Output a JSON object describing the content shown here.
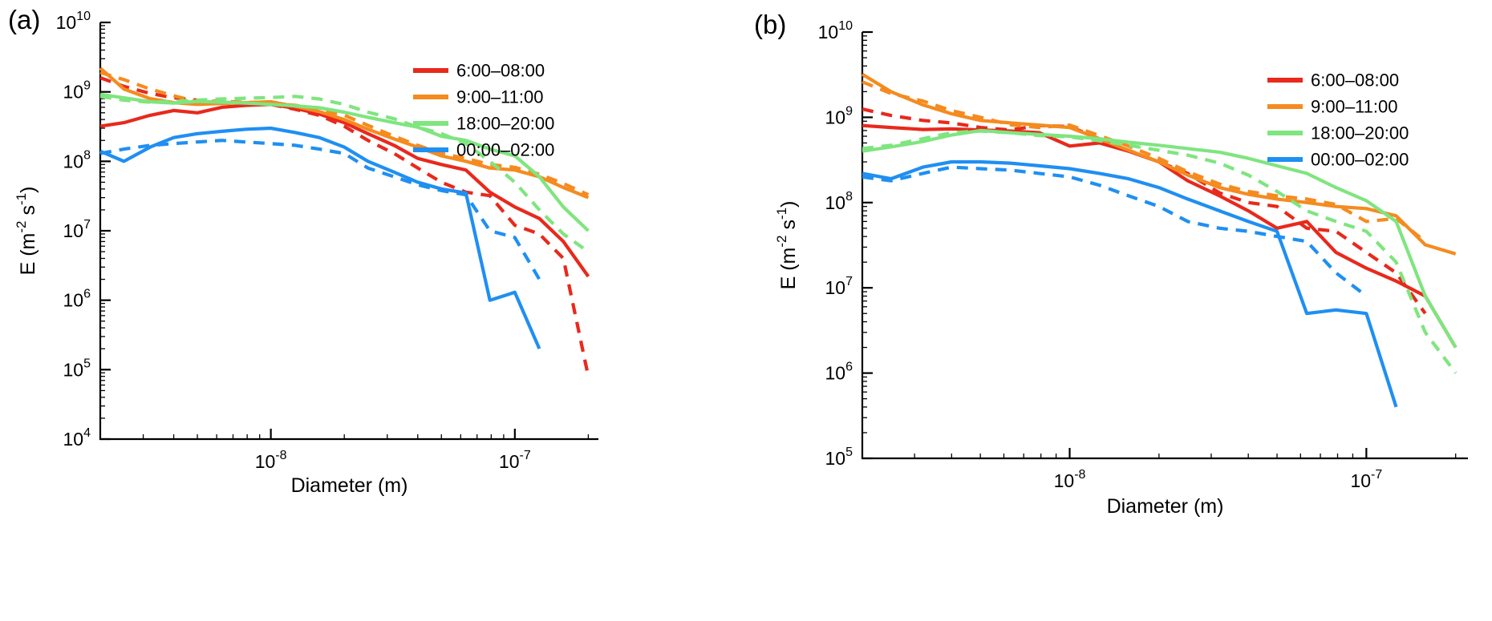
{
  "figure": {
    "background": "#ffffff",
    "palette": {
      "red": "#e8291c",
      "orange": "#f58b1f",
      "green": "#7fe57f",
      "blue": "#1f8ff2",
      "axis": "#000000"
    }
  },
  "chart_data": [
    {
      "panel_label": "(a)",
      "type": "line",
      "x_scale": "log",
      "y_scale": "log",
      "x_label": "Diameter (m)",
      "y_label": "E (m^-2 s^-1)",
      "y_label_parts": [
        {
          "t": "E (m"
        },
        {
          "t": "-2",
          "sup": true
        },
        {
          "t": " s"
        },
        {
          "t": "-1",
          "sup": true
        },
        {
          "t": ")"
        }
      ],
      "xlim": [
        2e-09,
        2.2e-07
      ],
      "ylim": [
        10000.0,
        10000000000.0
      ],
      "x_tick_exponents": [
        -8,
        -7
      ],
      "y_tick_exponents": [
        4,
        5,
        6,
        7,
        8,
        9,
        10
      ],
      "grid": false,
      "legend_position": "top-right",
      "legend": [
        {
          "label": "6:00–08:00",
          "color": "#e8291c"
        },
        {
          "label": "9:00–11:00",
          "color": "#f58b1f"
        },
        {
          "label": "18:00–20:00",
          "color": "#7fe57f"
        },
        {
          "label": "00:00–02:00",
          "color": "#1f8ff2"
        }
      ],
      "x": [
        2e-09,
        2.5e-09,
        3.2e-09,
        4e-09,
        5e-09,
        6.3e-09,
        7.9e-09,
        1e-08,
        1.26e-08,
        1.58e-08,
        2e-08,
        2.5e-08,
        3.2e-08,
        4e-08,
        5e-08,
        6.3e-08,
        7.9e-08,
        1e-07,
        1.26e-07,
        1.58e-07,
        2e-07
      ],
      "series": [
        {
          "label": "6:00–08:00",
          "style": "solid",
          "color": "#e8291c",
          "values": [
            320000000.0,
            360000000.0,
            460000000.0,
            540000000.0,
            500000000.0,
            600000000.0,
            640000000.0,
            660000000.0,
            580000000.0,
            480000000.0,
            360000000.0,
            250000000.0,
            170000000.0,
            110000000.0,
            90000000.0,
            75000000.0,
            36000000.0,
            22000000.0,
            15000000.0,
            7000000.0,
            2200000.0
          ]
        },
        {
          "label": "6:00–08:00",
          "style": "dashed",
          "color": "#e8291c",
          "values": [
            1600000000.0,
            1200000000.0,
            950000000.0,
            820000000.0,
            760000000.0,
            720000000.0,
            690000000.0,
            660000000.0,
            560000000.0,
            460000000.0,
            320000000.0,
            200000000.0,
            130000000.0,
            80000000.0,
            50000000.0,
            36000000.0,
            32000000.0,
            12000000.0,
            9000000.0,
            4000000.0,
            80000.0
          ]
        },
        {
          "label": "9:00–11:00",
          "style": "solid",
          "color": "#f58b1f",
          "values": [
            2200000000.0,
            1100000000.0,
            800000000.0,
            700000000.0,
            660000000.0,
            680000000.0,
            700000000.0,
            720000000.0,
            620000000.0,
            520000000.0,
            400000000.0,
            290000000.0,
            210000000.0,
            160000000.0,
            120000000.0,
            100000000.0,
            80000000.0,
            75000000.0,
            60000000.0,
            42000000.0,
            30000000.0
          ]
        },
        {
          "label": "9:00–11:00",
          "style": "dashed",
          "color": "#f58b1f",
          "values": [
            1900000000.0,
            1500000000.0,
            1100000000.0,
            880000000.0,
            720000000.0,
            730000000.0,
            710000000.0,
            690000000.0,
            640000000.0,
            560000000.0,
            460000000.0,
            330000000.0,
            230000000.0,
            170000000.0,
            130000000.0,
            110000000.0,
            90000000.0,
            82000000.0,
            65000000.0,
            48000000.0,
            33000000.0
          ]
        },
        {
          "label": "18:00–20:00",
          "style": "solid",
          "color": "#7fe57f",
          "values": [
            920000000.0,
            820000000.0,
            720000000.0,
            690000000.0,
            730000000.0,
            710000000.0,
            690000000.0,
            660000000.0,
            630000000.0,
            590000000.0,
            510000000.0,
            430000000.0,
            360000000.0,
            310000000.0,
            230000000.0,
            200000000.0,
            150000000.0,
            120000000.0,
            60000000.0,
            22000000.0,
            10000000.0
          ]
        },
        {
          "label": "18:00–20:00",
          "style": "dashed",
          "color": "#7fe57f",
          "values": [
            860000000.0,
            760000000.0,
            710000000.0,
            730000000.0,
            760000000.0,
            790000000.0,
            810000000.0,
            830000000.0,
            860000000.0,
            790000000.0,
            660000000.0,
            510000000.0,
            410000000.0,
            310000000.0,
            250000000.0,
            180000000.0,
            100000000.0,
            50000000.0,
            20000000.0,
            9000000.0,
            5000000.0
          ]
        },
        {
          "label": "00:00–02:00",
          "style": "solid",
          "color": "#1f8ff2",
          "values": [
            140000000.0,
            100000000.0,
            160000000.0,
            220000000.0,
            250000000.0,
            270000000.0,
            290000000.0,
            300000000.0,
            260000000.0,
            220000000.0,
            160000000.0,
            100000000.0,
            70000000.0,
            50000000.0,
            40000000.0,
            35000000.0,
            1000000.0,
            1300000.0,
            200000.0,
            null,
            null
          ]
        },
        {
          "label": "00:00–02:00",
          "style": "dashed",
          "color": "#1f8ff2",
          "values": [
            130000000.0,
            150000000.0,
            170000000.0,
            180000000.0,
            190000000.0,
            200000000.0,
            190000000.0,
            180000000.0,
            170000000.0,
            150000000.0,
            130000000.0,
            80000000.0,
            60000000.0,
            46000000.0,
            38000000.0,
            33000000.0,
            10000000.0,
            8000000.0,
            2000000.0,
            null,
            null
          ]
        }
      ]
    },
    {
      "panel_label": "(b)",
      "type": "line",
      "x_scale": "log",
      "y_scale": "log",
      "x_label": "Diameter (m)",
      "y_label": "E (m^-2 s^-1)",
      "y_label_parts": [
        {
          "t": "E (m"
        },
        {
          "t": "-2",
          "sup": true
        },
        {
          "t": " s"
        },
        {
          "t": "-1",
          "sup": true
        },
        {
          "t": ")"
        }
      ],
      "xlim": [
        2e-09,
        2.2e-07
      ],
      "ylim": [
        100000.0,
        10000000000.0
      ],
      "x_tick_exponents": [
        -8,
        -7
      ],
      "y_tick_exponents": [
        5,
        6,
        7,
        8,
        9,
        10
      ],
      "grid": false,
      "legend_position": "top-right",
      "legend": [
        {
          "label": "6:00–08:00",
          "color": "#e8291c"
        },
        {
          "label": "9:00–11:00",
          "color": "#f58b1f"
        },
        {
          "label": "18:00–20:00",
          "color": "#7fe57f"
        },
        {
          "label": "00:00–02:00",
          "color": "#1f8ff2"
        }
      ],
      "x": [
        2e-09,
        2.5e-09,
        3.2e-09,
        4e-09,
        5e-09,
        6.3e-09,
        7.9e-09,
        1e-08,
        1.26e-08,
        1.58e-08,
        2e-08,
        2.5e-08,
        3.2e-08,
        4e-08,
        5e-08,
        6.3e-08,
        7.9e-08,
        1e-07,
        1.26e-07,
        1.58e-07,
        2e-07
      ],
      "series": [
        {
          "label": "6:00–08:00",
          "style": "solid",
          "color": "#e8291c",
          "values": [
            800000000.0,
            760000000.0,
            720000000.0,
            730000000.0,
            710000000.0,
            690000000.0,
            660000000.0,
            460000000.0,
            500000000.0,
            400000000.0,
            300000000.0,
            180000000.0,
            120000000.0,
            80000000.0,
            50000000.0,
            60000000.0,
            26000000.0,
            17000000.0,
            12000000.0,
            8000000.0,
            2000000.0
          ]
        },
        {
          "label": "6:00–08:00",
          "style": "dashed",
          "color": "#e8291c",
          "values": [
            1250000000.0,
            1050000000.0,
            920000000.0,
            860000000.0,
            760000000.0,
            710000000.0,
            800000000.0,
            780000000.0,
            560000000.0,
            410000000.0,
            300000000.0,
            220000000.0,
            130000000.0,
            100000000.0,
            90000000.0,
            50000000.0,
            46000000.0,
            26000000.0,
            15000000.0,
            5000000.0,
            null
          ]
        },
        {
          "label": "9:00–11:00",
          "style": "solid",
          "color": "#f58b1f",
          "values": [
            3200000000.0,
            2000000000.0,
            1400000000.0,
            1100000000.0,
            920000000.0,
            860000000.0,
            810000000.0,
            760000000.0,
            560000000.0,
            410000000.0,
            300000000.0,
            210000000.0,
            150000000.0,
            125000000.0,
            110000000.0,
            100000000.0,
            90000000.0,
            85000000.0,
            70000000.0,
            32000000.0,
            25000000.0
          ]
        },
        {
          "label": "9:00–11:00",
          "style": "dashed",
          "color": "#f58b1f",
          "values": [
            2600000000.0,
            1900000000.0,
            1550000000.0,
            1200000000.0,
            1000000000.0,
            820000000.0,
            760000000.0,
            810000000.0,
            610000000.0,
            460000000.0,
            330000000.0,
            230000000.0,
            165000000.0,
            135000000.0,
            120000000.0,
            110000000.0,
            95000000.0,
            60000000.0,
            65000000.0,
            35000000.0,
            null
          ]
        },
        {
          "label": "18:00–20:00",
          "style": "solid",
          "color": "#7fe57f",
          "values": [
            400000000.0,
            450000000.0,
            520000000.0,
            620000000.0,
            700000000.0,
            660000000.0,
            630000000.0,
            600000000.0,
            560000000.0,
            510000000.0,
            470000000.0,
            430000000.0,
            390000000.0,
            330000000.0,
            270000000.0,
            220000000.0,
            150000000.0,
            105000000.0,
            60000000.0,
            8000000.0,
            2000000.0
          ]
        },
        {
          "label": "18:00–20:00",
          "style": "dashed",
          "color": "#7fe57f",
          "values": [
            430000000.0,
            470000000.0,
            560000000.0,
            660000000.0,
            690000000.0,
            660000000.0,
            610000000.0,
            590000000.0,
            530000000.0,
            470000000.0,
            410000000.0,
            360000000.0,
            290000000.0,
            210000000.0,
            135000000.0,
            80000000.0,
            60000000.0,
            46000000.0,
            20000000.0,
            3000000.0,
            1000000.0
          ]
        },
        {
          "label": "00:00–02:00",
          "style": "solid",
          "color": "#1f8ff2",
          "values": [
            220000000.0,
            190000000.0,
            260000000.0,
            300000000.0,
            300000000.0,
            290000000.0,
            270000000.0,
            250000000.0,
            220000000.0,
            190000000.0,
            150000000.0,
            110000000.0,
            80000000.0,
            60000000.0,
            46000000.0,
            5000000.0,
            5500000.0,
            5000000.0,
            400000.0,
            null,
            null
          ]
        },
        {
          "label": "00:00–02:00",
          "style": "dashed",
          "color": "#1f8ff2",
          "values": [
            200000000.0,
            180000000.0,
            220000000.0,
            260000000.0,
            250000000.0,
            240000000.0,
            220000000.0,
            200000000.0,
            160000000.0,
            120000000.0,
            90000000.0,
            60000000.0,
            50000000.0,
            46000000.0,
            40000000.0,
            35000000.0,
            15000000.0,
            8000000.0,
            null,
            null,
            null
          ]
        }
      ]
    }
  ]
}
